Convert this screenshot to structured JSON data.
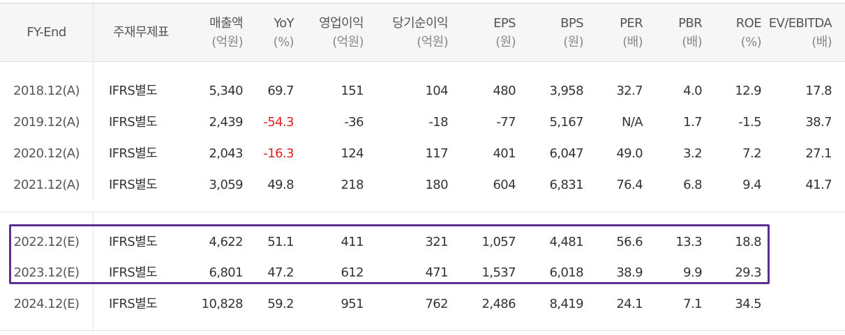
{
  "table": {
    "headers": {
      "fy_end": "FY-End",
      "basis": "주재무제표",
      "cols": [
        {
          "label": "매출액",
          "unit": "(억원)"
        },
        {
          "label": "YoY",
          "unit": "(%)"
        },
        {
          "label": "영업이익",
          "unit": "(억원)"
        },
        {
          "label": "당기순이익",
          "unit": "(억원)"
        },
        {
          "label": "EPS",
          "unit": "(원)"
        },
        {
          "label": "BPS",
          "unit": "(원)"
        },
        {
          "label": "PER",
          "unit": "(배)"
        },
        {
          "label": "PBR",
          "unit": "(배)"
        },
        {
          "label": "ROE",
          "unit": "(%)"
        },
        {
          "label": "EV/EBITDA",
          "unit": "(배)"
        }
      ]
    },
    "rows": [
      {
        "fy": "2018.12(A)",
        "basis": "IFRS별도",
        "vals": [
          "5,340",
          "69.7",
          "151",
          "104",
          "480",
          "3,958",
          "32.7",
          "4.0",
          "12.9",
          "17.8"
        ]
      },
      {
        "fy": "2019.12(A)",
        "basis": "IFRS별도",
        "vals": [
          "2,439",
          "-54.3",
          "-36",
          "-18",
          "-77",
          "5,167",
          "N/A",
          "1.7",
          "-1.5",
          "38.7"
        ]
      },
      {
        "fy": "2020.12(A)",
        "basis": "IFRS별도",
        "vals": [
          "2,043",
          "-16.3",
          "124",
          "117",
          "401",
          "6,047",
          "49.0",
          "3.2",
          "7.2",
          "27.1"
        ]
      },
      {
        "fy": "2021.12(A)",
        "basis": "IFRS별도",
        "vals": [
          "3,059",
          "49.8",
          "218",
          "180",
          "604",
          "6,831",
          "76.4",
          "6.8",
          "9.4",
          "41.7"
        ]
      },
      {
        "fy": "2022.12(E)",
        "basis": "IFRS별도",
        "vals": [
          "4,622",
          "51.1",
          "411",
          "321",
          "1,057",
          "4,481",
          "56.6",
          "13.3",
          "18.8",
          ""
        ]
      },
      {
        "fy": "2023.12(E)",
        "basis": "IFRS별도",
        "vals": [
          "6,801",
          "47.2",
          "612",
          "471",
          "1,537",
          "6,018",
          "38.9",
          "9.9",
          "29.3",
          ""
        ]
      },
      {
        "fy": "2024.12(E)",
        "basis": "IFRS별도",
        "vals": [
          "10,828",
          "59.2",
          "951",
          "762",
          "2,486",
          "8,419",
          "24.1",
          "7.1",
          "34.5",
          ""
        ]
      }
    ],
    "negative_color": "#e02020",
    "highlight_color": "#5b2e91"
  }
}
